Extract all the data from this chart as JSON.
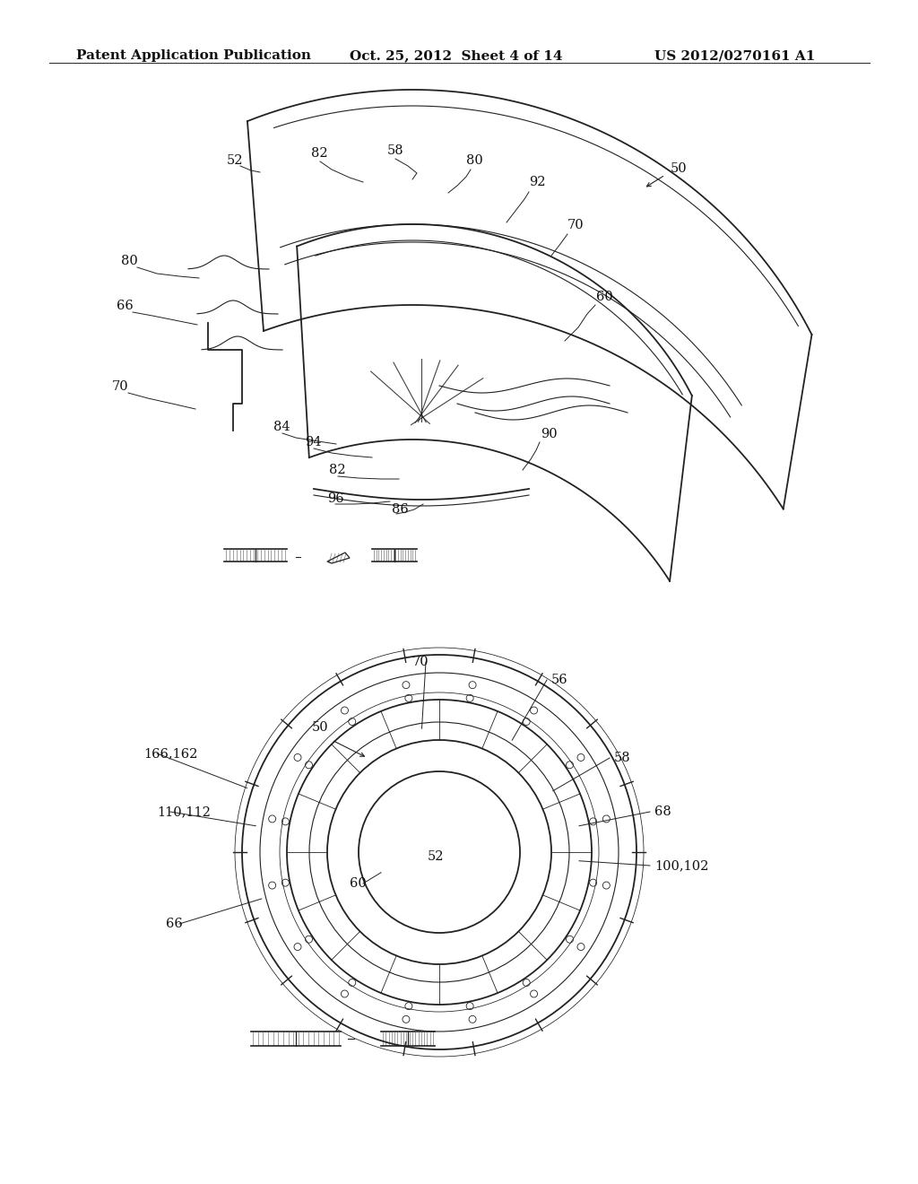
{
  "bg_color": "#ffffff",
  "header_left": "Patent Application Publication",
  "header_center": "Oct. 25, 2012  Sheet 4 of 14",
  "header_right": "US 2012/0270161 A1",
  "header_fontsize": 11,
  "fig_width": 10.24,
  "fig_height": 13.2
}
